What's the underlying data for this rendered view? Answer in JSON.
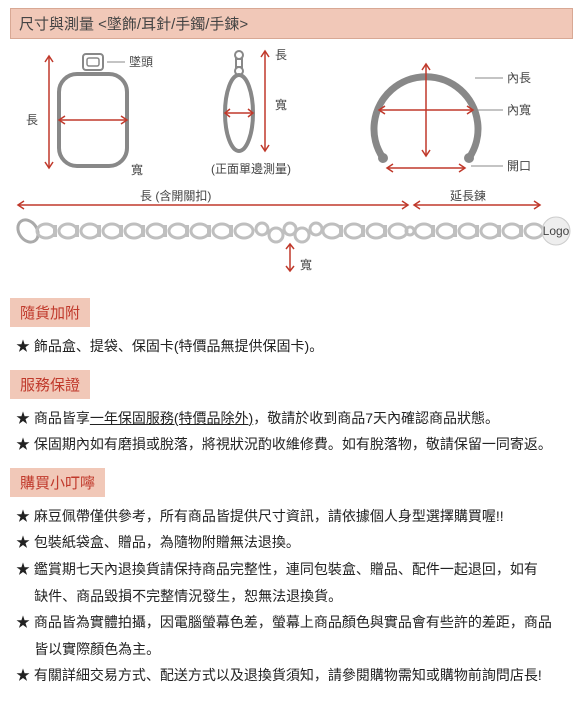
{
  "colors": {
    "header_bg": "#f1c8b8",
    "header_border": "#d8a894",
    "section_text": "#c0392b",
    "body_text": "#333333",
    "guide_red": "#c0392b",
    "outline": "#888888",
    "chain_grey": "#bfbfbf"
  },
  "title": "尺寸與測量 <墜飾/耳針/手鐲/手鍊>",
  "diagrams": {
    "pendant": {
      "labels": {
        "top": "墜頭",
        "length": "長",
        "width": "寬"
      }
    },
    "earring": {
      "labels": {
        "length": "長",
        "width": "寬",
        "note": "(正面單邊測量)"
      }
    },
    "bangle": {
      "labels": {
        "inner_length": "內長",
        "inner_width": "內寬",
        "opening": "開口"
      }
    },
    "chain": {
      "labels": {
        "length": "長 (含開關扣)",
        "width": "寬",
        "ext": "延長鍊",
        "logo": "Logo"
      }
    }
  },
  "sections": [
    {
      "header": "隨貨加附",
      "items": [
        "★ 飾品盒、提袋、保固卡(特價品無提供保固卡)。"
      ]
    },
    {
      "header": "服務保證",
      "items": [
        "★ 商品皆享<u>一年保固服務(特價品除外)</u>，敬請於收到商品7天內確認商品狀態。",
        "★ 保固期內如有磨損或脫落，將視狀況酌收維修費。如有脫落物，敬請保留一同寄返。"
      ]
    },
    {
      "header": "購買小叮嚀",
      "items": [
        "★ 麻豆佩帶僅供參考，所有商品皆提供尺寸資訊，請依據個人身型選擇購買喔!!",
        "★ 包裝紙袋盒、贈品，為隨物附贈無法退換。",
        "★ 鑑賞期七天內退換貨請保持商品完整性，連同包裝盒、贈品、配件一起退回，如有",
        "   缺件、商品毀損不完整情況發生，恕無法退換貨。",
        "★ 商品皆為實體拍攝，因電腦螢幕色差，螢幕上商品顏色與實品會有些許的差距，商品",
        "   皆以實際顏色為主。",
        "★ 有關詳細交易方式、配送方式以及退換貨須知，請參閱購物需知或購物前詢問店長!"
      ]
    }
  ]
}
